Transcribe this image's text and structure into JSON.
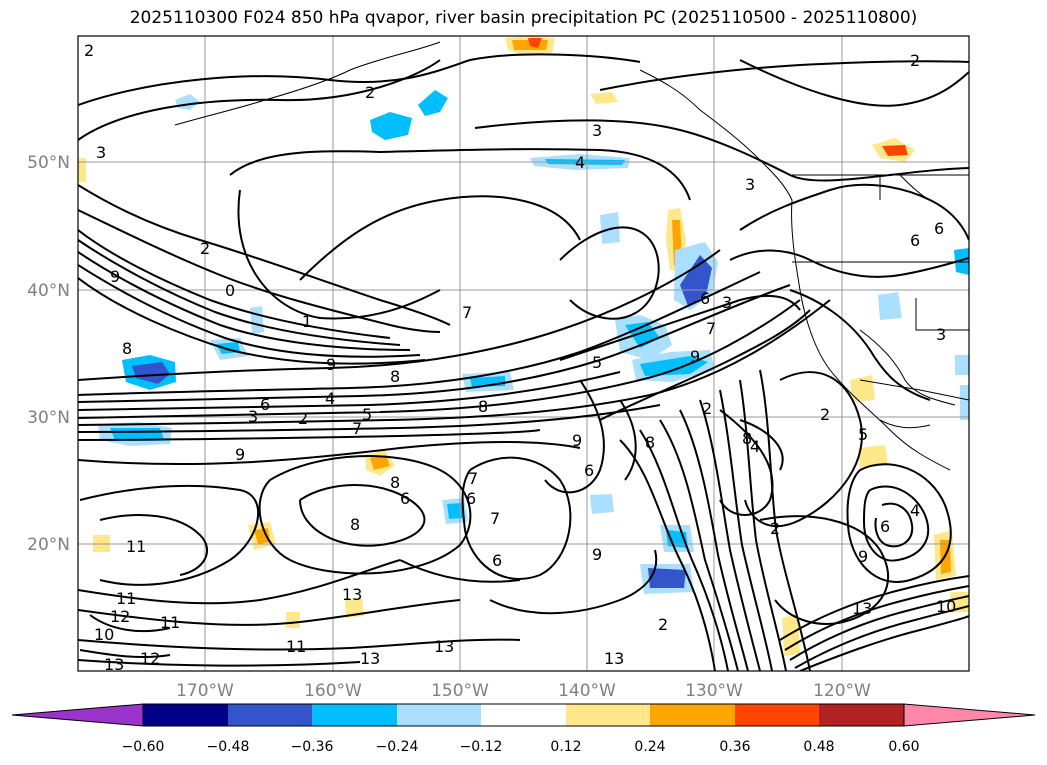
{
  "title": "2025110300 F024 850 hPa qvapor, river basin precipitation PC (2025110500 - 2025110800)",
  "lat_labels": [
    "50°N",
    "40°N",
    "30°N",
    "20°N"
  ],
  "lon_labels": [
    "170°W",
    "160°W",
    "150°W",
    "140°W",
    "130°W",
    "120°W"
  ],
  "colorbar": {
    "tick_labels": [
      "−0.60",
      "−0.48",
      "−0.36",
      "−0.24",
      "−0.12",
      "0.12",
      "0.24",
      "0.36",
      "0.48",
      "0.60"
    ],
    "colors": [
      "#9933cc",
      "#00008b",
      "#3355cc",
      "#00bfff",
      "#aadfff",
      "#ffffff",
      "#ffe88a",
      "#ffa500",
      "#ff4500",
      "#b22222",
      "#ff88aa"
    ]
  },
  "contour_labels": [
    "2",
    "2",
    "2",
    "3",
    "3",
    "3",
    "4",
    "2",
    "2",
    "6",
    "6",
    "3",
    "0",
    "9",
    "8",
    "1",
    "9",
    "7",
    "8",
    "7",
    "5",
    "4",
    "6",
    "3",
    "9",
    "2",
    "8",
    "5",
    "9",
    "8",
    "6",
    "6",
    "7",
    "6",
    "7",
    "9",
    "8",
    "8",
    "9",
    "6",
    "6",
    "7",
    "2",
    "3",
    "2",
    "8",
    "4",
    "5",
    "6",
    "4",
    "9",
    "11",
    "11",
    "11",
    "12",
    "12",
    "13",
    "10",
    "11",
    "13",
    "13",
    "13",
    "13",
    "10",
    "13",
    "2"
  ]
}
